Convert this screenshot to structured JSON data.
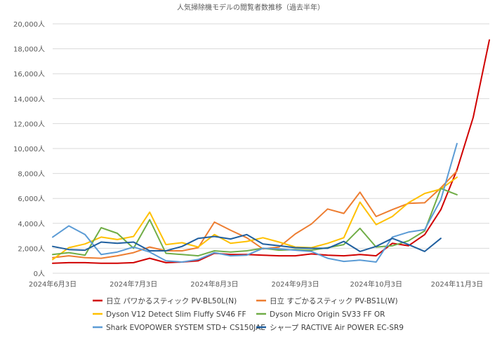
{
  "chart_data": {
    "type": "line",
    "title": "人気掃除機モデルの閲覧者数推移（過去半年）",
    "xlabel": "",
    "ylabel": "",
    "ylim": [
      0,
      20000
    ],
    "yticks": [
      0,
      2000,
      4000,
      6000,
      8000,
      10000,
      12000,
      14000,
      16000,
      18000,
      20000
    ],
    "ytick_labels": [
      "0人",
      "2,000人",
      "4,000人",
      "6,000人",
      "8,000人",
      "10,000人",
      "12,000人",
      "14,000人",
      "16,000人",
      "18,000人",
      "20,000人"
    ],
    "xtick_labels": [
      {
        "index": 0,
        "label": "2024年6月3日"
      },
      {
        "index": 5,
        "label": "2024年7月3日"
      },
      {
        "index": 10,
        "label": "2024年8月3日"
      },
      {
        "index": 15,
        "label": "2024年9月3日"
      },
      {
        "index": 20,
        "label": "2024年10月3日"
      },
      {
        "index": 25,
        "label": "2024年11月3日"
      }
    ],
    "grid": true,
    "legend_position": "bottom",
    "series": [
      {
        "name": "日立 パワかるスティック PV-BL50L(N)",
        "color": "#d00000",
        "values": [
          800,
          850,
          850,
          800,
          800,
          850,
          1200,
          850,
          900,
          1000,
          1600,
          1500,
          1500,
          1450,
          1400,
          1400,
          1550,
          1450,
          1400,
          1500,
          1400,
          2400,
          2200,
          3100,
          5100,
          8300,
          12500,
          18700
        ]
      },
      {
        "name": "日立 すごかるスティック PV-BS1L(W)",
        "color": "#ed7d31",
        "values": [
          1250,
          1400,
          1250,
          1200,
          1400,
          1650,
          2100,
          1800,
          1800,
          2050,
          4100,
          3450,
          2850,
          1950,
          2100,
          3150,
          3950,
          5150,
          4800,
          6500,
          4550,
          5100,
          5600,
          5650,
          6850,
          8200
        ]
      },
      {
        "name": "Dyson V12 Detect Slim Fluffy SV46 FF",
        "color": "#ffc000",
        "values": [
          1100,
          2050,
          2350,
          2900,
          2700,
          2950,
          4900,
          2300,
          2450,
          2100,
          3100,
          2400,
          2550,
          2850,
          2500,
          2100,
          2050,
          2400,
          2850,
          5700,
          3900,
          4550,
          5650,
          6400,
          6750,
          7700
        ]
      },
      {
        "name": "Dyson Micro Origin SV33 FF OR",
        "color": "#70ad47",
        "values": [
          1500,
          1650,
          1450,
          3650,
          3200,
          2000,
          4300,
          1600,
          1500,
          1400,
          1800,
          1700,
          1800,
          2000,
          1850,
          1900,
          1850,
          2050,
          2300,
          3600,
          2100,
          2200,
          2600,
          3400,
          6800,
          6300
        ]
      },
      {
        "name": "Shark EVOPOWER SYSTEM STD+ CS150JAE",
        "color": "#5b9bd5",
        "values": [
          2900,
          3800,
          3100,
          1500,
          1700,
          2100,
          1700,
          1000,
          900,
          1100,
          1650,
          1400,
          1450,
          2000,
          1950,
          1850,
          1750,
          1200,
          950,
          1050,
          900,
          2900,
          3300,
          3500,
          5900,
          10400
        ]
      },
      {
        "name": "シャープ RACTIVE Air POWER EC-SR9",
        "color": "#1f5f9f",
        "values": [
          2150,
          1900,
          1850,
          2500,
          2400,
          2500,
          1800,
          1800,
          2150,
          2800,
          2950,
          2750,
          3100,
          2350,
          2200,
          2050,
          2000,
          2000,
          2550,
          1750,
          2150,
          2800,
          2300,
          1750,
          2800
        ]
      }
    ]
  }
}
